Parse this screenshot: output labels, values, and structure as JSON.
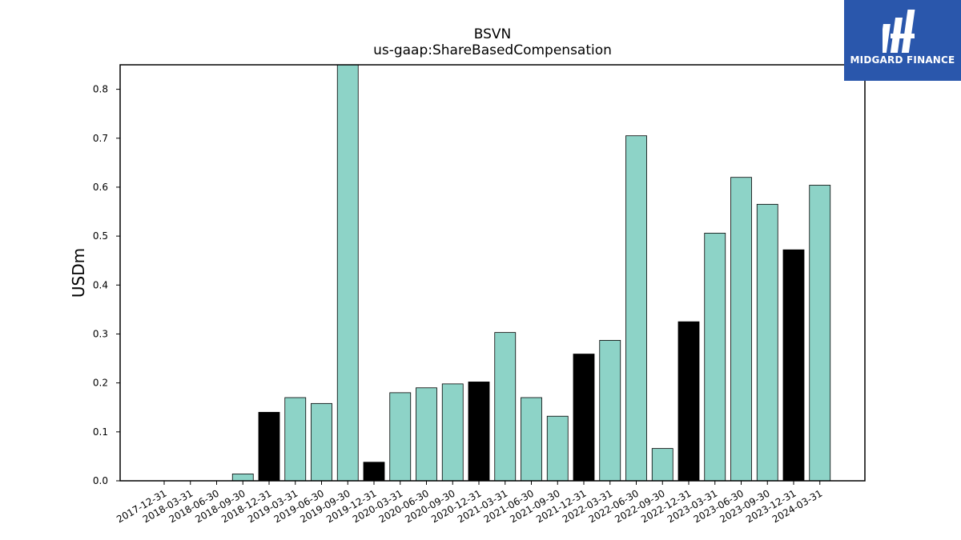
{
  "chart_data": {
    "type": "bar",
    "title": "BSVN",
    "subtitle": "us-gaap:ShareBasedCompensation",
    "ylabel": "USDm",
    "xlabel": "",
    "ylim": [
      0,
      0.85
    ],
    "yticks": [
      "0.0",
      "0.1",
      "0.2",
      "0.3",
      "0.4",
      "0.5",
      "0.6",
      "0.7",
      "0.8"
    ],
    "grid": false,
    "categories": [
      "2017-12-31",
      "2018-03-31",
      "2018-06-30",
      "2018-09-30",
      "2018-12-31",
      "2019-03-31",
      "2019-06-30",
      "2019-09-30",
      "2019-12-31",
      "2020-03-31",
      "2020-06-30",
      "2020-09-30",
      "2020-12-31",
      "2021-03-31",
      "2021-06-30",
      "2021-09-30",
      "2021-12-31",
      "2022-03-31",
      "2022-06-30",
      "2022-09-30",
      "2022-12-31",
      "2023-03-31",
      "2023-06-30",
      "2023-09-30",
      "2023-12-31",
      "2024-03-31"
    ],
    "values": [
      0,
      0,
      0,
      0.014,
      0.14,
      0.17,
      0.158,
      0.85,
      0.038,
      0.18,
      0.19,
      0.198,
      0.202,
      0.303,
      0.17,
      0.132,
      0.259,
      0.287,
      0.705,
      0.066,
      0.325,
      0.506,
      0.62,
      0.565,
      0.472,
      0.604
    ],
    "bar_colors": [
      "#8dd3c7",
      "#8dd3c7",
      "#8dd3c7",
      "#8dd3c7",
      "#000000",
      "#8dd3c7",
      "#8dd3c7",
      "#8dd3c7",
      "#000000",
      "#8dd3c7",
      "#8dd3c7",
      "#8dd3c7",
      "#000000",
      "#8dd3c7",
      "#8dd3c7",
      "#8dd3c7",
      "#000000",
      "#8dd3c7",
      "#8dd3c7",
      "#8dd3c7",
      "#000000",
      "#8dd3c7",
      "#8dd3c7",
      "#8dd3c7",
      "#000000",
      "#8dd3c7"
    ],
    "colors": {
      "quarter": "#8dd3c7",
      "year_end": "#000000",
      "edge": "#000000"
    }
  },
  "logo": {
    "text": "MIDGARD FINANCE",
    "background": "#2a57ac"
  }
}
